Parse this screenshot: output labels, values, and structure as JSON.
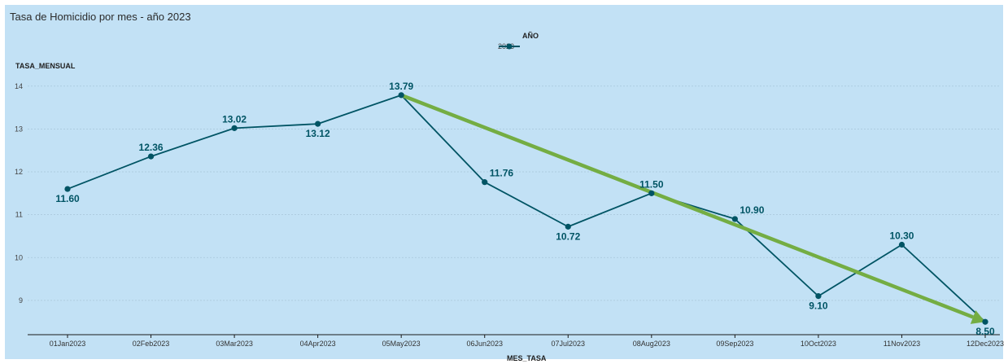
{
  "chart_data": {
    "type": "line",
    "title": "Tasa de Homicidio por mes - año 2023",
    "xlabel": "MES_TASA",
    "ylabel": "TASA_MENSUAL",
    "legend_title": "AÑO",
    "series": [
      {
        "name": "2023",
        "values": [
          11.6,
          12.36,
          13.02,
          13.12,
          13.79,
          11.76,
          10.72,
          11.5,
          10.9,
          9.1,
          10.3,
          8.5
        ],
        "labels": [
          "11.60",
          "12.36",
          "13.02",
          "13.12",
          "13.79",
          "11.76",
          "10.72",
          "11.50",
          "10.90",
          "9.10",
          "10.30",
          "8.50"
        ],
        "color": "#005464"
      }
    ],
    "categories": [
      "01Jan2023",
      "02Feb2023",
      "03Mar2023",
      "04Apr2023",
      "05May2023",
      "06Jun2023",
      "07Jul2023",
      "08Aug2023",
      "09Sep2023",
      "10Oct2023",
      "11Nov2023",
      "12Dec2023"
    ],
    "y_ticks": [
      9,
      10,
      11,
      12,
      13,
      14
    ],
    "ylim": [
      8.2,
      14.3
    ],
    "grid": true,
    "legend_position": "top-center",
    "annotation": {
      "type": "trend-arrow",
      "from_category": "05May2023",
      "to_category": "12Dec2023",
      "from_value": 13.79,
      "to_value": 8.5,
      "color": "#74ad43"
    }
  }
}
